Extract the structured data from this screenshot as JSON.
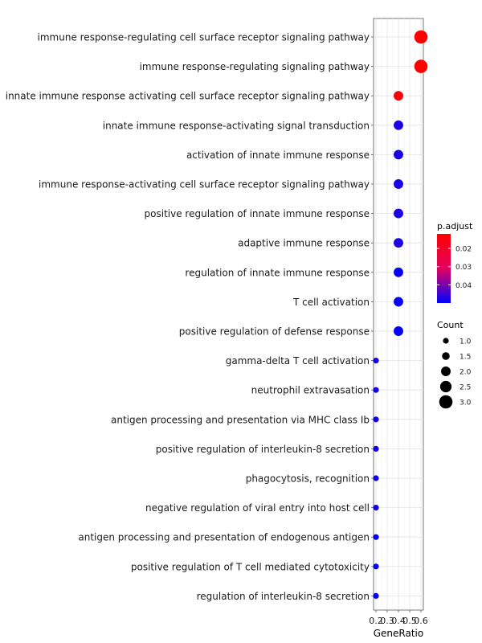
{
  "chart_data": {
    "type": "scatter",
    "title": "",
    "xlabel": "GeneRatio",
    "ylabel": "",
    "xlim": [
      0.2,
      0.6
    ],
    "x_ticks": [
      {
        "value": 0.2,
        "label": "0.2"
      },
      {
        "value": 0.3,
        "label": "0.3"
      },
      {
        "value": 0.4,
        "label": "0.4"
      },
      {
        "value": 0.5,
        "label": "0.5"
      },
      {
        "value": 0.6,
        "label": "0.6"
      }
    ],
    "grid": true,
    "legend_position": "right",
    "color_legend": {
      "title": "p.adjust",
      "range": [
        0.012,
        0.05
      ],
      "ticks": [
        {
          "value": 0.02,
          "label": "0.02"
        },
        {
          "value": 0.03,
          "label": "0.03"
        },
        {
          "value": 0.04,
          "label": "0.04"
        }
      ],
      "low_color": "#ff0000",
      "high_color": "#0000ff"
    },
    "size_legend": {
      "title": "Count",
      "entries": [
        {
          "value": 1.0,
          "label": "1.0"
        },
        {
          "value": 1.5,
          "label": "1.5"
        },
        {
          "value": 2.0,
          "label": "2.0"
        },
        {
          "value": 2.5,
          "label": "2.5"
        },
        {
          "value": 3.0,
          "label": "3.0"
        }
      ]
    },
    "points": [
      {
        "term": "immune response-regulating cell surface receptor signaling pathway",
        "gene_ratio": 0.6,
        "count": 3,
        "p_adjust": 0.012
      },
      {
        "term": "immune response-regulating signaling pathway",
        "gene_ratio": 0.6,
        "count": 3,
        "p_adjust": 0.012
      },
      {
        "term": "innate immune response activating cell surface receptor signaling pathway",
        "gene_ratio": 0.4,
        "count": 2,
        "p_adjust": 0.013
      },
      {
        "term": "innate immune response-activating signal transduction",
        "gene_ratio": 0.4,
        "count": 2,
        "p_adjust": 0.046
      },
      {
        "term": "activation of innate immune response",
        "gene_ratio": 0.4,
        "count": 2,
        "p_adjust": 0.046
      },
      {
        "term": "immune response-activating cell surface receptor signaling pathway",
        "gene_ratio": 0.4,
        "count": 2,
        "p_adjust": 0.046
      },
      {
        "term": "positive regulation of innate immune response",
        "gene_ratio": 0.4,
        "count": 2,
        "p_adjust": 0.046
      },
      {
        "term": "adaptive immune response",
        "gene_ratio": 0.4,
        "count": 2,
        "p_adjust": 0.046
      },
      {
        "term": "regulation of innate immune response",
        "gene_ratio": 0.4,
        "count": 2,
        "p_adjust": 0.049
      },
      {
        "term": "T cell activation",
        "gene_ratio": 0.4,
        "count": 2,
        "p_adjust": 0.049
      },
      {
        "term": "positive regulation of defense response",
        "gene_ratio": 0.4,
        "count": 2,
        "p_adjust": 0.049
      },
      {
        "term": "gamma-delta T cell activation",
        "gene_ratio": 0.2,
        "count": 1,
        "p_adjust": 0.047
      },
      {
        "term": "neutrophil extravasation",
        "gene_ratio": 0.2,
        "count": 1,
        "p_adjust": 0.047
      },
      {
        "term": "antigen processing and presentation via MHC class Ib",
        "gene_ratio": 0.2,
        "count": 1,
        "p_adjust": 0.047
      },
      {
        "term": "positive regulation of interleukin-8 secretion",
        "gene_ratio": 0.2,
        "count": 1,
        "p_adjust": 0.047
      },
      {
        "term": "phagocytosis, recognition",
        "gene_ratio": 0.2,
        "count": 1,
        "p_adjust": 0.047
      },
      {
        "term": "negative regulation of viral entry into host cell",
        "gene_ratio": 0.2,
        "count": 1,
        "p_adjust": 0.047
      },
      {
        "term": "antigen processing and presentation of endogenous antigen",
        "gene_ratio": 0.2,
        "count": 1,
        "p_adjust": 0.049
      },
      {
        "term": "positive regulation of T cell mediated cytotoxicity",
        "gene_ratio": 0.2,
        "count": 1,
        "p_adjust": 0.049
      },
      {
        "term": "regulation of interleukin-8 secretion",
        "gene_ratio": 0.2,
        "count": 1,
        "p_adjust": 0.049
      }
    ]
  }
}
